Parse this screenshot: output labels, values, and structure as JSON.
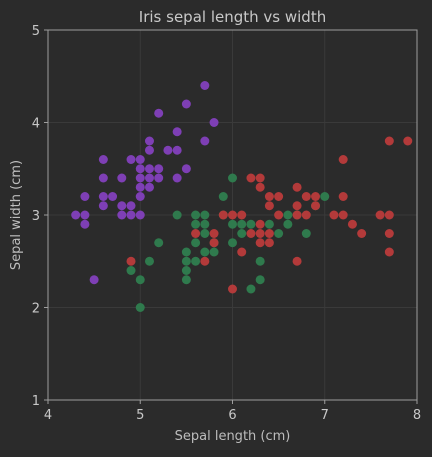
{
  "chart_data": {
    "type": "scatter",
    "title": "Iris sepal length vs width",
    "xlabel": "Sepal length (cm)",
    "ylabel": "Sepal width (cm)",
    "xlim": [
      4,
      8
    ],
    "ylim": [
      1,
      5
    ],
    "x_ticks": [
      4,
      5,
      6,
      7,
      8
    ],
    "y_ticks": [
      1,
      2,
      3,
      4,
      5
    ],
    "grid": true,
    "legend": "none",
    "colors": {
      "background": "#2b2b2b",
      "axes": "#9e9e9e",
      "grid": "#3a3a3a",
      "text": "#c8c8c8"
    },
    "series": [
      {
        "color": "#7e3fb5",
        "points": [
          [
            4.3,
            3.0
          ],
          [
            4.4,
            3.0
          ],
          [
            4.4,
            3.2
          ],
          [
            4.4,
            2.9
          ],
          [
            4.5,
            2.3
          ],
          [
            4.6,
            3.6
          ],
          [
            4.6,
            3.4
          ],
          [
            4.6,
            3.2
          ],
          [
            4.6,
            3.1
          ],
          [
            4.7,
            3.2
          ],
          [
            4.8,
            3.4
          ],
          [
            4.8,
            3.1
          ],
          [
            4.8,
            3.0
          ],
          [
            4.9,
            3.6
          ],
          [
            4.9,
            3.1
          ],
          [
            4.9,
            3.0
          ],
          [
            5.0,
            3.6
          ],
          [
            5.0,
            3.5
          ],
          [
            5.0,
            3.4
          ],
          [
            5.0,
            3.3
          ],
          [
            5.0,
            3.2
          ],
          [
            5.0,
            3.0
          ],
          [
            5.1,
            3.8
          ],
          [
            5.1,
            3.7
          ],
          [
            5.1,
            3.5
          ],
          [
            5.1,
            3.4
          ],
          [
            5.1,
            3.3
          ],
          [
            5.2,
            4.1
          ],
          [
            5.2,
            3.5
          ],
          [
            5.2,
            3.4
          ],
          [
            5.3,
            3.7
          ],
          [
            5.4,
            3.9
          ],
          [
            5.4,
            3.7
          ],
          [
            5.4,
            3.4
          ],
          [
            5.5,
            4.2
          ],
          [
            5.5,
            3.5
          ],
          [
            5.7,
            4.4
          ],
          [
            5.7,
            3.8
          ],
          [
            5.8,
            4.0
          ]
        ]
      },
      {
        "color": "#2f7a4d",
        "points": [
          [
            4.9,
            2.4
          ],
          [
            5.0,
            2.0
          ],
          [
            5.0,
            2.3
          ],
          [
            5.1,
            2.5
          ],
          [
            5.2,
            2.7
          ],
          [
            5.4,
            3.0
          ],
          [
            5.5,
            2.3
          ],
          [
            5.5,
            2.4
          ],
          [
            5.5,
            2.5
          ],
          [
            5.5,
            2.6
          ],
          [
            5.6,
            3.0
          ],
          [
            5.6,
            2.9
          ],
          [
            5.6,
            2.7
          ],
          [
            5.6,
            2.5
          ],
          [
            5.7,
            3.0
          ],
          [
            5.7,
            2.9
          ],
          [
            5.7,
            2.8
          ],
          [
            5.7,
            2.6
          ],
          [
            5.8,
            2.7
          ],
          [
            5.8,
            2.6
          ],
          [
            5.9,
            3.2
          ],
          [
            5.9,
            3.0
          ],
          [
            6.0,
            3.4
          ],
          [
            6.0,
            2.9
          ],
          [
            6.0,
            2.7
          ],
          [
            6.1,
            2.9
          ],
          [
            6.1,
            2.8
          ],
          [
            6.2,
            2.9
          ],
          [
            6.2,
            2.2
          ],
          [
            6.3,
            2.3
          ],
          [
            6.3,
            2.5
          ],
          [
            6.4,
            2.9
          ],
          [
            6.5,
            2.8
          ],
          [
            6.6,
            3.0
          ],
          [
            6.6,
            2.9
          ],
          [
            6.7,
            3.0
          ],
          [
            6.8,
            2.8
          ],
          [
            6.9,
            3.1
          ],
          [
            7.0,
            3.2
          ]
        ]
      },
      {
        "color": "#b33a3a",
        "points": [
          [
            4.9,
            2.5
          ],
          [
            5.6,
            2.8
          ],
          [
            5.7,
            2.5
          ],
          [
            5.8,
            2.8
          ],
          [
            5.8,
            2.7
          ],
          [
            5.9,
            3.0
          ],
          [
            6.0,
            3.0
          ],
          [
            6.0,
            2.2
          ],
          [
            6.1,
            3.0
          ],
          [
            6.1,
            2.6
          ],
          [
            6.2,
            3.4
          ],
          [
            6.2,
            2.8
          ],
          [
            6.3,
            3.4
          ],
          [
            6.3,
            3.3
          ],
          [
            6.3,
            2.9
          ],
          [
            6.3,
            2.8
          ],
          [
            6.3,
            2.7
          ],
          [
            6.4,
            3.2
          ],
          [
            6.4,
            3.1
          ],
          [
            6.4,
            2.8
          ],
          [
            6.4,
            2.7
          ],
          [
            6.5,
            3.2
          ],
          [
            6.5,
            3.0
          ],
          [
            6.7,
            3.3
          ],
          [
            6.7,
            3.1
          ],
          [
            6.7,
            3.0
          ],
          [
            6.7,
            2.5
          ],
          [
            6.8,
            3.2
          ],
          [
            6.8,
            3.0
          ],
          [
            6.9,
            3.2
          ],
          [
            6.9,
            3.1
          ],
          [
            7.1,
            3.0
          ],
          [
            7.2,
            3.6
          ],
          [
            7.2,
            3.2
          ],
          [
            7.2,
            3.0
          ],
          [
            7.3,
            2.9
          ],
          [
            7.4,
            2.8
          ],
          [
            7.6,
            3.0
          ],
          [
            7.7,
            3.8
          ],
          [
            7.7,
            3.0
          ],
          [
            7.7,
            2.8
          ],
          [
            7.7,
            2.6
          ],
          [
            7.9,
            3.8
          ]
        ]
      }
    ]
  }
}
